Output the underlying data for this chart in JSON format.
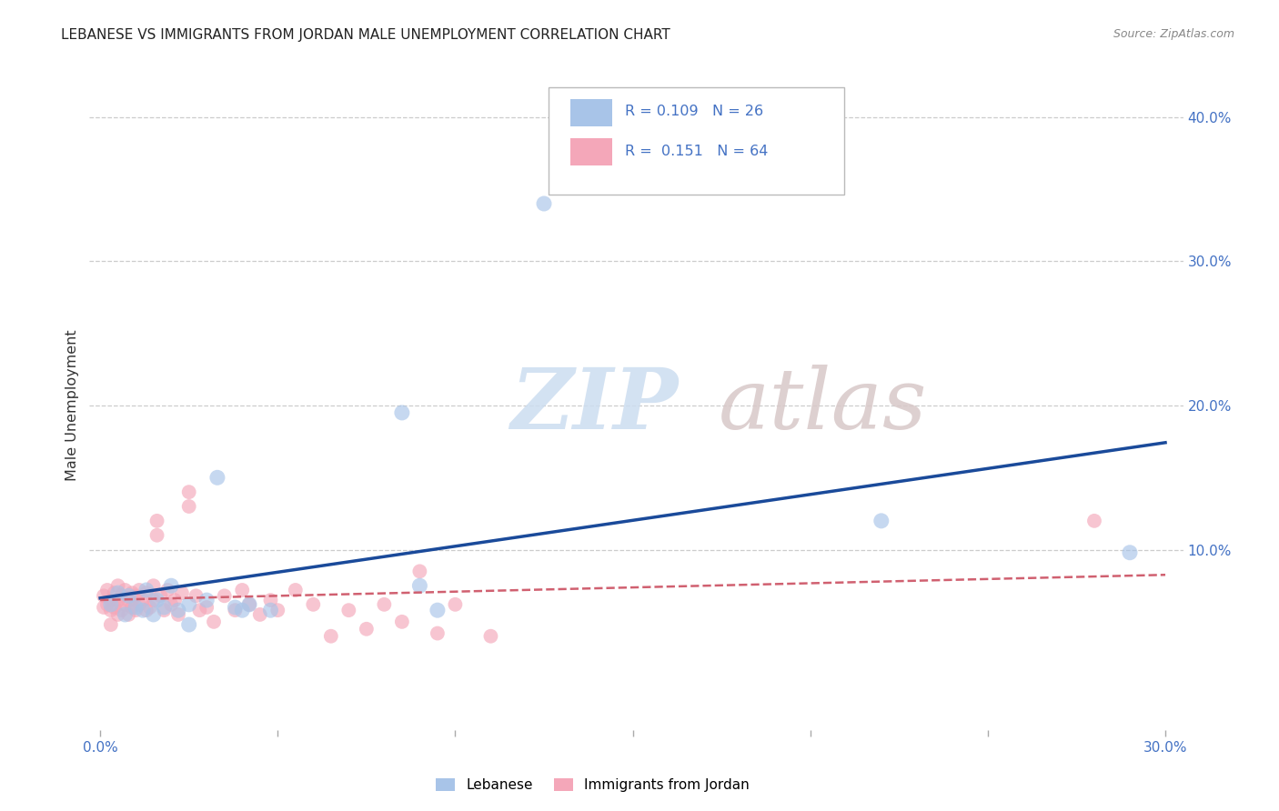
{
  "title": "LEBANESE VS IMMIGRANTS FROM JORDAN MALE UNEMPLOYMENT CORRELATION CHART",
  "source": "Source: ZipAtlas.com",
  "ylabel": "Male Unemployment",
  "xlim": [
    -0.003,
    0.305
  ],
  "ylim": [
    -0.025,
    0.425
  ],
  "group1_color": "#a8c4e8",
  "group2_color": "#f4a7b9",
  "group1_line_color": "#1a4a9a",
  "group2_line_color": "#d06070",
  "legend_label1": "Lebanese",
  "legend_label2": "Immigrants from Jordan",
  "R1": "0.109",
  "N1": "26",
  "R2": "0.151",
  "N2": "64",
  "blue_points_x": [
    0.003,
    0.005,
    0.007,
    0.008,
    0.01,
    0.012,
    0.013,
    0.015,
    0.016,
    0.018,
    0.02,
    0.022,
    0.025,
    0.025,
    0.03,
    0.033,
    0.038,
    0.04,
    0.042,
    0.048,
    0.085,
    0.09,
    0.095,
    0.125,
    0.22,
    0.29
  ],
  "blue_points_y": [
    0.062,
    0.07,
    0.055,
    0.068,
    0.06,
    0.058,
    0.072,
    0.055,
    0.065,
    0.06,
    0.075,
    0.058,
    0.048,
    0.062,
    0.065,
    0.15,
    0.06,
    0.058,
    0.062,
    0.058,
    0.195,
    0.075,
    0.058,
    0.34,
    0.12,
    0.098
  ],
  "pink_points_x": [
    0.001,
    0.001,
    0.002,
    0.002,
    0.003,
    0.003,
    0.003,
    0.004,
    0.004,
    0.005,
    0.005,
    0.005,
    0.006,
    0.006,
    0.007,
    0.007,
    0.008,
    0.008,
    0.009,
    0.009,
    0.01,
    0.01,
    0.011,
    0.011,
    0.012,
    0.013,
    0.013,
    0.014,
    0.015,
    0.015,
    0.016,
    0.016,
    0.017,
    0.018,
    0.019,
    0.02,
    0.021,
    0.022,
    0.023,
    0.025,
    0.025,
    0.027,
    0.028,
    0.03,
    0.032,
    0.035,
    0.038,
    0.04,
    0.042,
    0.045,
    0.048,
    0.05,
    0.055,
    0.06,
    0.065,
    0.07,
    0.075,
    0.08,
    0.085,
    0.09,
    0.095,
    0.1,
    0.11,
    0.28
  ],
  "pink_points_y": [
    0.068,
    0.06,
    0.072,
    0.062,
    0.058,
    0.065,
    0.048,
    0.07,
    0.06,
    0.075,
    0.065,
    0.055,
    0.068,
    0.058,
    0.072,
    0.062,
    0.065,
    0.055,
    0.07,
    0.06,
    0.068,
    0.058,
    0.072,
    0.062,
    0.065,
    0.058,
    0.07,
    0.06,
    0.075,
    0.065,
    0.12,
    0.11,
    0.068,
    0.058,
    0.072,
    0.062,
    0.065,
    0.055,
    0.07,
    0.14,
    0.13,
    0.068,
    0.058,
    0.06,
    0.05,
    0.068,
    0.058,
    0.072,
    0.062,
    0.055,
    0.065,
    0.058,
    0.072,
    0.062,
    0.04,
    0.058,
    0.045,
    0.062,
    0.05,
    0.085,
    0.042,
    0.062,
    0.04,
    0.12
  ],
  "background_color": "#ffffff",
  "grid_color": "#cccccc",
  "watermark_zip": "ZIP",
  "watermark_atlas": "atlas",
  "watermark_color": "#ccddf0",
  "watermark_color2": "#d8c8c8"
}
